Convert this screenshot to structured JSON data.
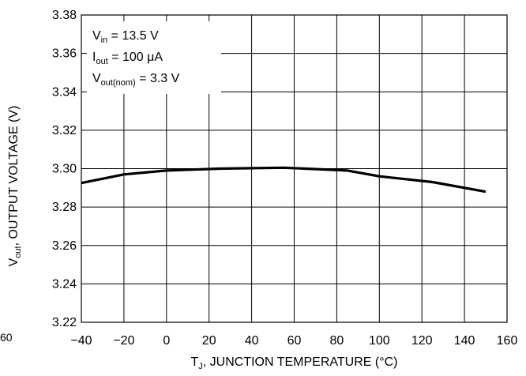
{
  "chart_data": {
    "type": "line",
    "title": "",
    "xlabel": {
      "main": "T",
      "sub": "J",
      "rest": ", JUNCTION TEMPERATURE (°C)"
    },
    "ylabel": {
      "main": "V",
      "sub": "out",
      "rest": ", OUTPUT VOLTAGE (V)"
    },
    "xlim": [
      -40,
      160
    ],
    "ylim": [
      3.22,
      3.38
    ],
    "xticks": [
      -40,
      -20,
      0,
      20,
      40,
      60,
      80,
      100,
      120,
      140,
      160
    ],
    "xtick_labels": [
      "−40",
      "−20",
      "0",
      "20",
      "40",
      "60",
      "80",
      "100",
      "120",
      "140",
      "160"
    ],
    "yticks": [
      3.22,
      3.24,
      3.26,
      3.28,
      3.3,
      3.32,
      3.34,
      3.36,
      3.38
    ],
    "ytick_labels": [
      "3.22",
      "3.24",
      "3.26",
      "3.28",
      "3.30",
      "3.32",
      "3.34",
      "3.36",
      "3.38"
    ],
    "grid": true,
    "series": [
      {
        "x": [
          -40,
          -20,
          0,
          25,
          55,
          85,
          100,
          125,
          150
        ],
        "y": [
          3.2925,
          3.297,
          3.299,
          3.3,
          3.3005,
          3.299,
          3.296,
          3.293,
          3.288
        ]
      }
    ],
    "annotations": [
      {
        "main": "V",
        "sub": "in",
        "rest": " = 13.5 V"
      },
      {
        "main": "I",
        "sub": "out",
        "rest": " = 100 μA"
      },
      {
        "main": "V",
        "sub": "out(nom)",
        "rest": " = 3.3 V"
      }
    ],
    "stray_tick_label": "60"
  },
  "colors": {
    "line": "#000000",
    "grid": "#000000",
    "background": "#ffffff"
  }
}
